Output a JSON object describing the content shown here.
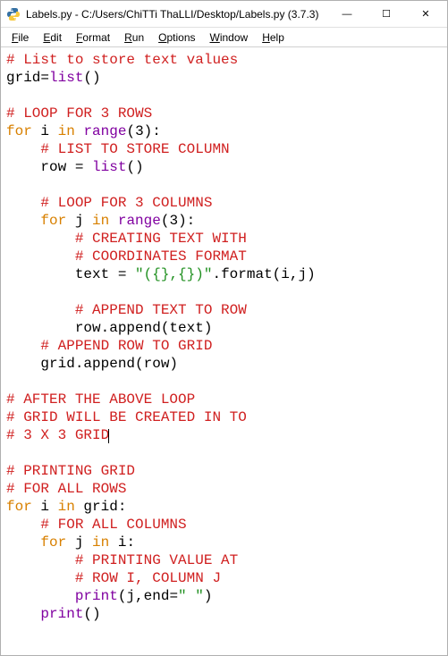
{
  "window": {
    "title": "Labels.py - C:/Users/ChiTTi ThaLLI/Desktop/Labels.py (3.7.3)",
    "controls": {
      "minimize": "—",
      "maximize": "☐",
      "close": "✕"
    }
  },
  "menu": {
    "file": "File",
    "edit": "Edit",
    "format": "Format",
    "run": "Run",
    "options": "Options",
    "window": "Window",
    "help": "Help"
  },
  "colors": {
    "comment": "#d02020",
    "keyword": "#d88000",
    "builtin": "#8000a0",
    "string": "#209020",
    "default": "#000000",
    "background": "#ffffff"
  },
  "typography": {
    "editor_font": "Courier New",
    "editor_size_pt": 12,
    "ui_font": "Segoe UI",
    "ui_size_pt": 9
  },
  "code": {
    "tokens": [
      [
        {
          "t": "# List to store text values",
          "c": "comment"
        }
      ],
      [
        {
          "t": "grid",
          "c": "default"
        },
        {
          "t": "=",
          "c": "default"
        },
        {
          "t": "list",
          "c": "builtin"
        },
        {
          "t": "()",
          "c": "default"
        }
      ],
      [],
      [
        {
          "t": "# LOOP FOR 3 ROWS",
          "c": "comment"
        }
      ],
      [
        {
          "t": "for",
          "c": "keyword"
        },
        {
          "t": " i ",
          "c": "default"
        },
        {
          "t": "in",
          "c": "keyword"
        },
        {
          "t": " ",
          "c": "default"
        },
        {
          "t": "range",
          "c": "builtin"
        },
        {
          "t": "(",
          "c": "default"
        },
        {
          "t": "3",
          "c": "default"
        },
        {
          "t": "):",
          "c": "default"
        }
      ],
      [
        {
          "t": "    ",
          "c": "default"
        },
        {
          "t": "# LIST TO STORE COLUMN",
          "c": "comment"
        }
      ],
      [
        {
          "t": "    row ",
          "c": "default"
        },
        {
          "t": "=",
          "c": "default"
        },
        {
          "t": " ",
          "c": "default"
        },
        {
          "t": "list",
          "c": "builtin"
        },
        {
          "t": "()",
          "c": "default"
        }
      ],
      [],
      [
        {
          "t": "    ",
          "c": "default"
        },
        {
          "t": "# LOOP FOR 3 COLUMNS",
          "c": "comment"
        }
      ],
      [
        {
          "t": "    ",
          "c": "default"
        },
        {
          "t": "for",
          "c": "keyword"
        },
        {
          "t": " j ",
          "c": "default"
        },
        {
          "t": "in",
          "c": "keyword"
        },
        {
          "t": " ",
          "c": "default"
        },
        {
          "t": "range",
          "c": "builtin"
        },
        {
          "t": "(",
          "c": "default"
        },
        {
          "t": "3",
          "c": "default"
        },
        {
          "t": "):",
          "c": "default"
        }
      ],
      [
        {
          "t": "        ",
          "c": "default"
        },
        {
          "t": "# CREATING TEXT WITH",
          "c": "comment"
        }
      ],
      [
        {
          "t": "        ",
          "c": "default"
        },
        {
          "t": "# COORDINATES FORMAT",
          "c": "comment"
        }
      ],
      [
        {
          "t": "        text ",
          "c": "default"
        },
        {
          "t": "=",
          "c": "default"
        },
        {
          "t": " ",
          "c": "default"
        },
        {
          "t": "\"({},{})\"",
          "c": "string"
        },
        {
          "t": ".format(i,j)",
          "c": "default"
        }
      ],
      [],
      [
        {
          "t": "        ",
          "c": "default"
        },
        {
          "t": "# APPEND TEXT TO ROW",
          "c": "comment"
        }
      ],
      [
        {
          "t": "        row.append(text)",
          "c": "default"
        }
      ],
      [
        {
          "t": "    ",
          "c": "default"
        },
        {
          "t": "# APPEND ROW TO GRID",
          "c": "comment"
        }
      ],
      [
        {
          "t": "    grid.append(row)",
          "c": "default"
        }
      ],
      [],
      [
        {
          "t": "# AFTER THE ABOVE LOOP",
          "c": "comment"
        }
      ],
      [
        {
          "t": "# GRID WILL BE CREATED IN TO",
          "c": "comment"
        }
      ],
      [
        {
          "t": "# 3 X 3 GRID",
          "c": "comment",
          "caret": true
        }
      ],
      [],
      [
        {
          "t": "# PRINTING GRID",
          "c": "comment"
        }
      ],
      [
        {
          "t": "# FOR ALL ROWS",
          "c": "comment"
        }
      ],
      [
        {
          "t": "for",
          "c": "keyword"
        },
        {
          "t": " i ",
          "c": "default"
        },
        {
          "t": "in",
          "c": "keyword"
        },
        {
          "t": " grid:",
          "c": "default"
        }
      ],
      [
        {
          "t": "    ",
          "c": "default"
        },
        {
          "t": "# FOR ALL COLUMNS",
          "c": "comment"
        }
      ],
      [
        {
          "t": "    ",
          "c": "default"
        },
        {
          "t": "for",
          "c": "keyword"
        },
        {
          "t": " j ",
          "c": "default"
        },
        {
          "t": "in",
          "c": "keyword"
        },
        {
          "t": " i:",
          "c": "default"
        }
      ],
      [
        {
          "t": "        ",
          "c": "default"
        },
        {
          "t": "# PRINTING VALUE AT",
          "c": "comment"
        }
      ],
      [
        {
          "t": "        ",
          "c": "default"
        },
        {
          "t": "# ROW I, COLUMN J",
          "c": "comment"
        }
      ],
      [
        {
          "t": "        ",
          "c": "default"
        },
        {
          "t": "print",
          "c": "builtin"
        },
        {
          "t": "(j,end",
          "c": "default"
        },
        {
          "t": "=",
          "c": "default"
        },
        {
          "t": "\" \"",
          "c": "string"
        },
        {
          "t": ")",
          "c": "default"
        }
      ],
      [
        {
          "t": "    ",
          "c": "default"
        },
        {
          "t": "print",
          "c": "builtin"
        },
        {
          "t": "()",
          "c": "default"
        }
      ]
    ]
  }
}
